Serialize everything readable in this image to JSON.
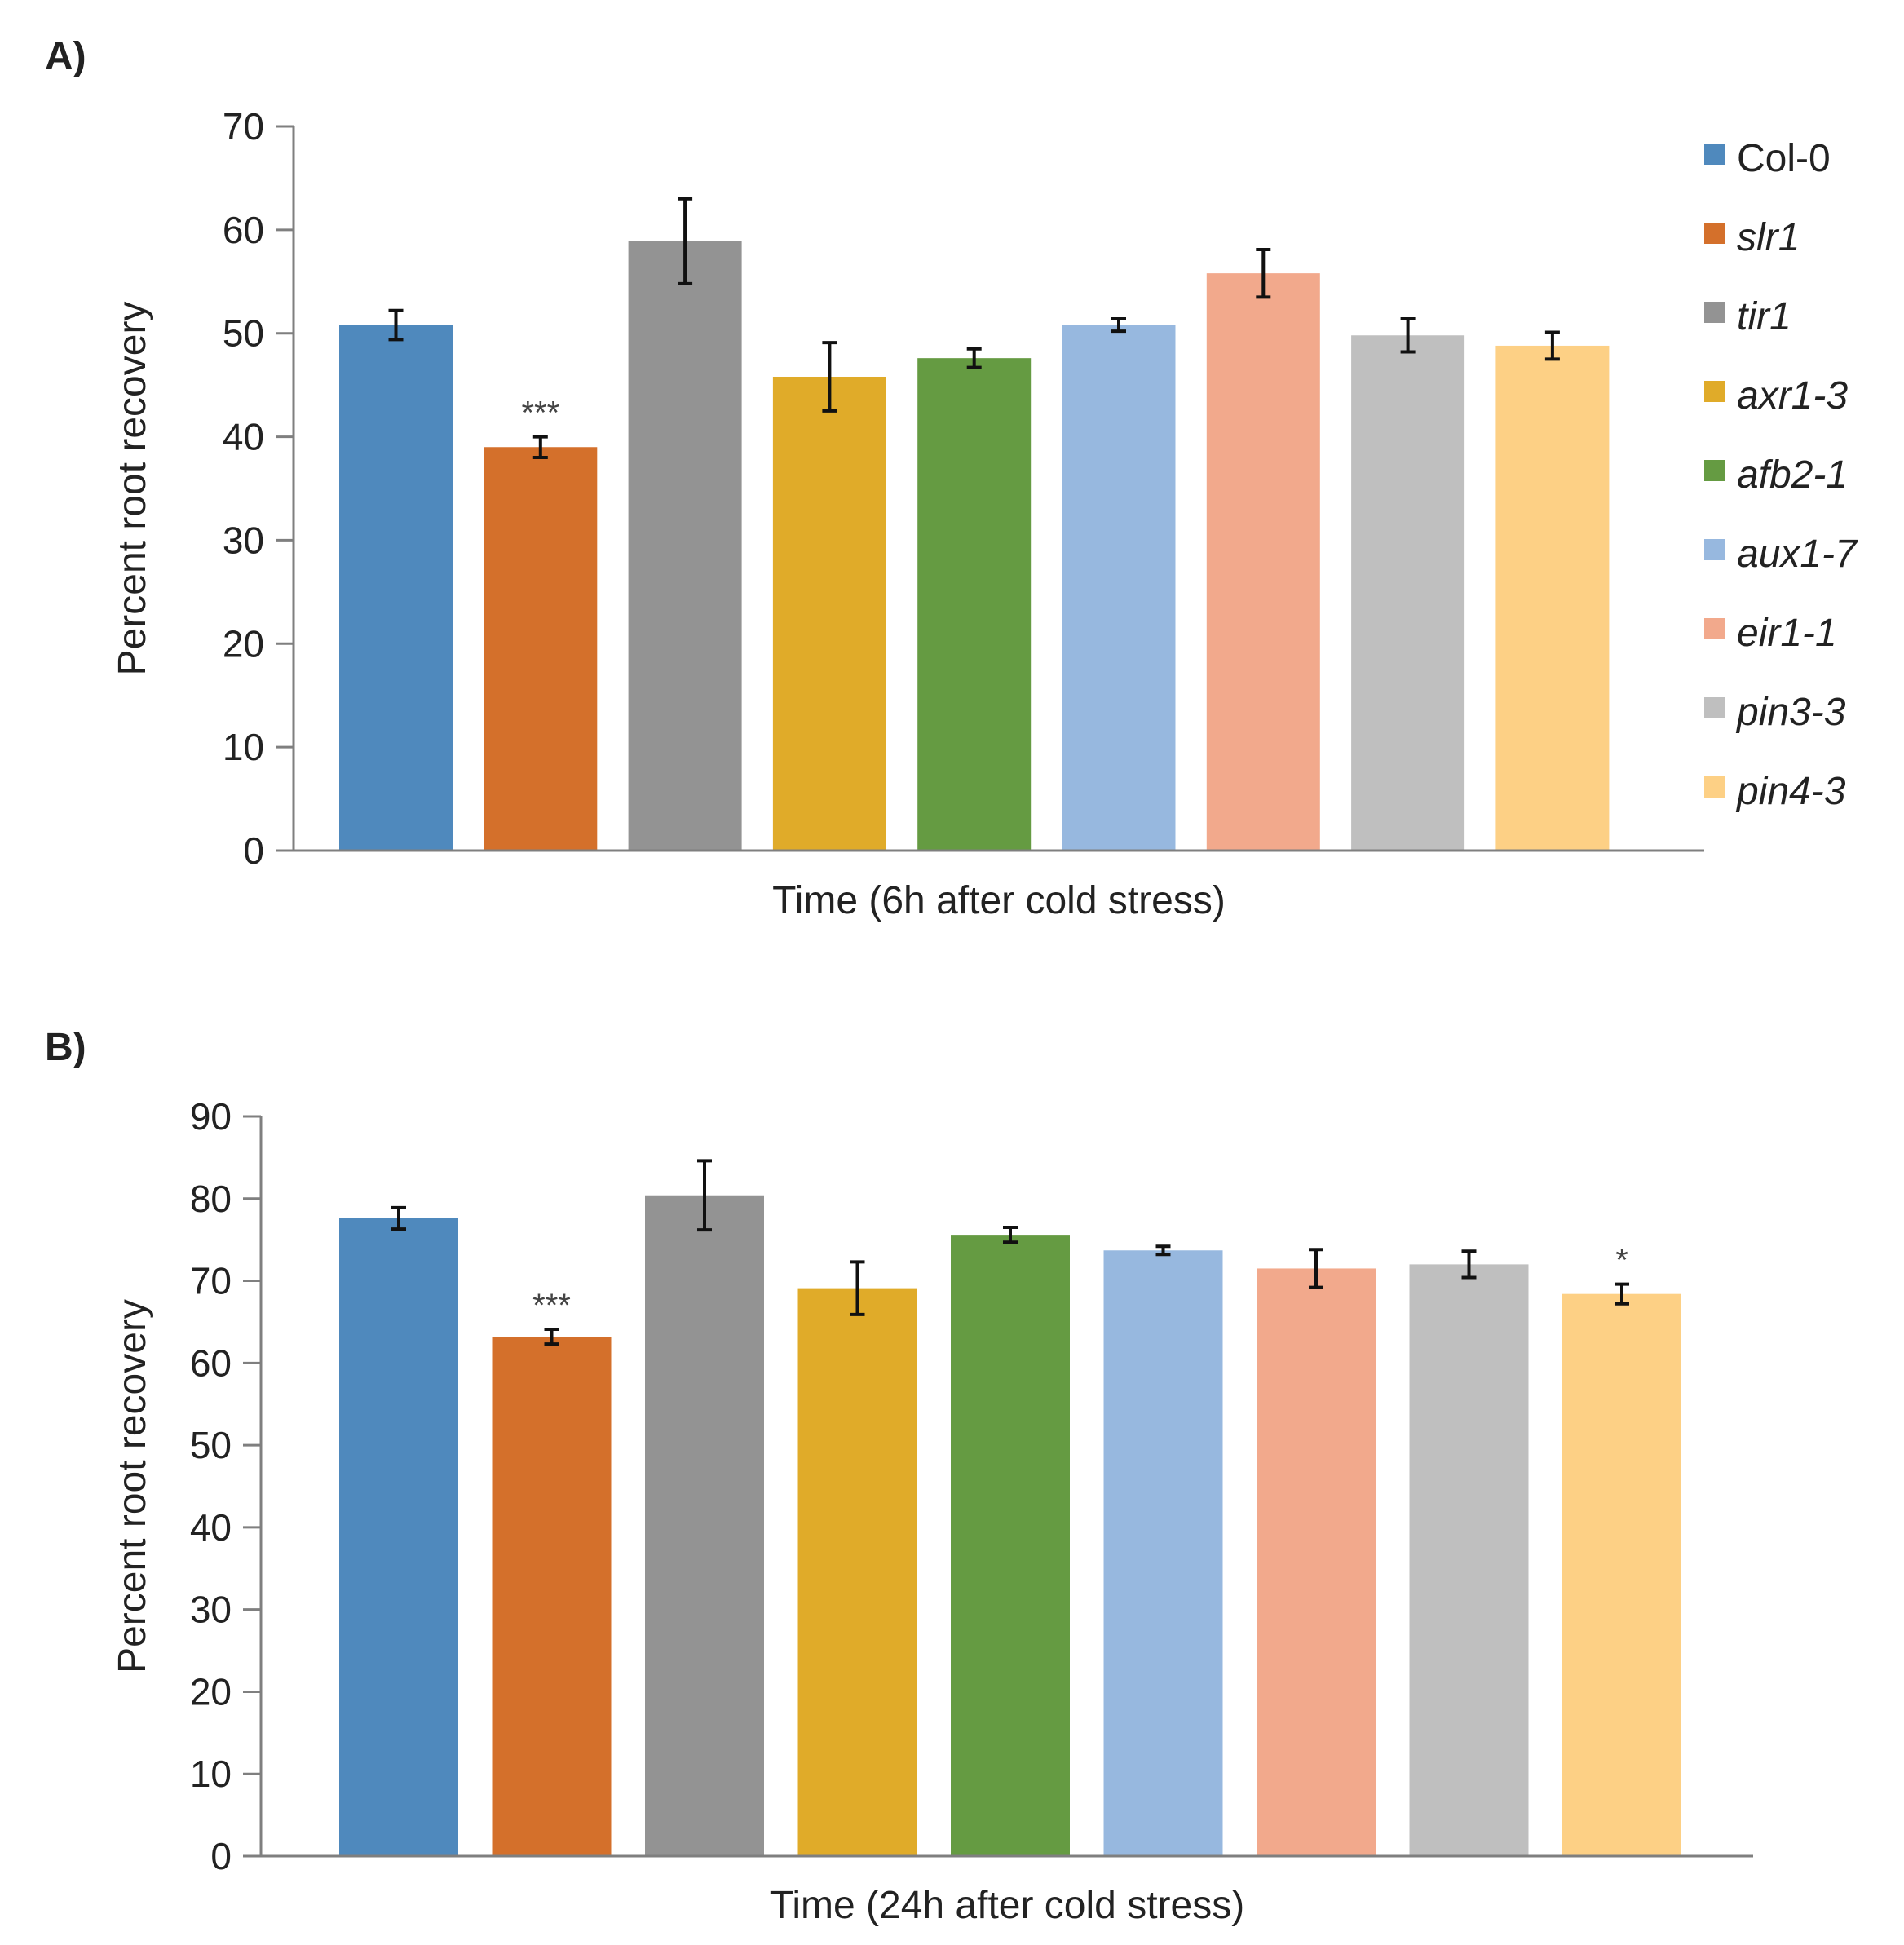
{
  "legend": [
    {
      "label": "Col-0",
      "italic": false,
      "color": "#4f89bd"
    },
    {
      "label": "slr1",
      "italic": true,
      "color": "#d4702b"
    },
    {
      "label": "tir1",
      "italic": true,
      "color": "#939393"
    },
    {
      "label": "axr1-3",
      "italic": true,
      "color": "#e0ab29"
    },
    {
      "label": "afb2-1",
      "italic": true,
      "color": "#659b42"
    },
    {
      "label": "aux1-7",
      "italic": true,
      "color": "#97b8df"
    },
    {
      "label": "eir1-1",
      "italic": true,
      "color": "#f2a98c"
    },
    {
      "label": "pin3-3",
      "italic": true,
      "color": "#bfbfbf"
    },
    {
      "label": "pin4-3",
      "italic": true,
      "color": "#fdd085"
    }
  ],
  "chart_data": [
    {
      "panel": "A)",
      "type": "bar",
      "xlabel": "Time (6h after cold stress)",
      "ylabel": "Percent root recovery",
      "ylim": [
        0,
        70
      ],
      "yticks": [
        0,
        10,
        20,
        30,
        40,
        50,
        60,
        70
      ],
      "categories": [
        "Col-0",
        "slr1",
        "tir1",
        "axr1-3",
        "afb2-1",
        "aux1-7",
        "eir1-1",
        "pin3-3",
        "pin4-3"
      ],
      "values": [
        50.8,
        39.0,
        58.9,
        45.8,
        47.6,
        50.8,
        55.8,
        49.8,
        48.8
      ],
      "errors": [
        1.4,
        1.0,
        4.1,
        3.3,
        0.9,
        0.6,
        2.3,
        1.6,
        1.3
      ],
      "annotations": [
        "",
        "***",
        "",
        "",
        "",
        "",
        "",
        "",
        ""
      ]
    },
    {
      "panel": "B)",
      "type": "bar",
      "xlabel": "Time (24h after cold stress)",
      "ylabel": "Percent root recovery",
      "ylim": [
        0,
        90
      ],
      "yticks": [
        0,
        10,
        20,
        30,
        40,
        50,
        60,
        70,
        80,
        90
      ],
      "categories": [
        "Col-0",
        "slr1",
        "tir1",
        "axr1-3",
        "afb2-1",
        "aux1-7",
        "eir1-1",
        "pin3-3",
        "pin4-3"
      ],
      "values": [
        77.6,
        63.2,
        80.4,
        69.1,
        75.6,
        73.7,
        71.5,
        72.0,
        68.4
      ],
      "errors": [
        1.3,
        0.9,
        4.2,
        3.2,
        0.9,
        0.5,
        2.3,
        1.6,
        1.2
      ],
      "annotations": [
        "",
        "***",
        "",
        "",
        "",
        "",
        "",
        "",
        "*"
      ]
    }
  ]
}
